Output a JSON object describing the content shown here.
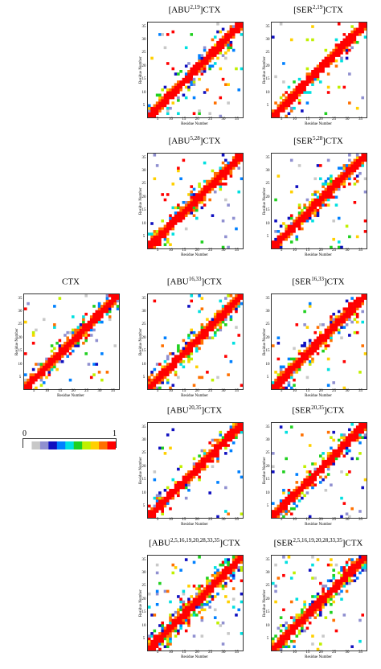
{
  "panels": [
    {
      "id": "abu-2-19",
      "title_base": "[ABU",
      "title_sup": "2,19",
      "title_end": "]CTX",
      "seed": 11,
      "density": 0.3
    },
    {
      "id": "ser-2-19",
      "title_base": "[SER",
      "title_sup": "2,19",
      "title_end": "]CTX",
      "seed": 12,
      "density": 0.18
    },
    {
      "id": "abu-5-28",
      "title_base": "[ABU",
      "title_sup": "5,28",
      "title_end": "]CTX",
      "seed": 13,
      "density": 0.3
    },
    {
      "id": "ser-5-28",
      "title_base": "[SER",
      "title_sup": "5,28",
      "title_end": "]CTX",
      "seed": 14,
      "density": 0.3
    },
    {
      "id": "ctx",
      "title_base": "CTX",
      "title_sup": "",
      "title_end": "",
      "seed": 15,
      "density": 0.28
    },
    {
      "id": "abu-16-33",
      "title_base": "[ABU",
      "title_sup": "16,33",
      "title_end": "]CTX",
      "seed": 16,
      "density": 0.3
    },
    {
      "id": "ser-16-33",
      "title_base": "[SER",
      "title_sup": "16,33",
      "title_end": "]CTX",
      "seed": 17,
      "density": 0.3
    },
    {
      "id": "abu-20-35",
      "title_base": "[ABU",
      "title_sup": "20,35",
      "title_end": "]CTX",
      "seed": 18,
      "density": 0.26
    },
    {
      "id": "ser-20-35",
      "title_base": "[SER",
      "title_sup": "20,35",
      "title_end": "]CTX",
      "seed": 19,
      "density": 0.26
    },
    {
      "id": "abu-all",
      "title_base": "[ABU",
      "title_sup": "2,5,16,19,20,28,33,35",
      "title_end": "]CTX",
      "seed": 20,
      "density": 0.45
    },
    {
      "id": "ser-all",
      "title_base": "[SER",
      "title_sup": "2,5,16,19,20,28,33,35",
      "title_end": "]CTX",
      "seed": 21,
      "density": 0.45
    }
  ],
  "axis": {
    "ylabel": "Residue Number",
    "xlabel": "Residue Number",
    "ticks": [
      "5",
      "10",
      "15",
      "20",
      "25",
      "30",
      "35"
    ],
    "n_residues": 36
  },
  "colorbar": {
    "min_label": "0",
    "max_label": "1",
    "colors": [
      "#ffffff",
      "#c8c8c8",
      "#9090d0",
      "#1010c0",
      "#0080ff",
      "#00e0e0",
      "#20d020",
      "#c0f000",
      "#ffd000",
      "#ff7000",
      "#ff0000"
    ]
  }
}
